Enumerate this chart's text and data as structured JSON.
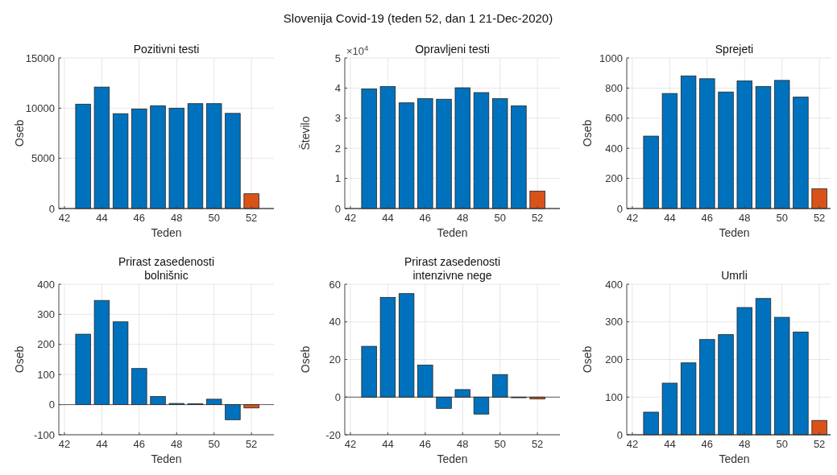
{
  "chart_data": [
    {
      "type": "bar",
      "title": "Pozitivni testi",
      "xlabel": "Teden",
      "ylabel": "Oseb",
      "annotations": [
        "Slovenija Covid-19 (teden 52, dan 1 21-Dec-2020)"
      ],
      "x": [
        43,
        44,
        45,
        46,
        47,
        48,
        49,
        50,
        51,
        52
      ],
      "values": [
        10400,
        12100,
        9450,
        9920,
        10240,
        10000,
        10450,
        10450,
        9480,
        1470
      ],
      "colors": [
        "#0072bd",
        "#0072bd",
        "#0072bd",
        "#0072bd",
        "#0072bd",
        "#0072bd",
        "#0072bd",
        "#0072bd",
        "#0072bd",
        "#d95319"
      ],
      "xlim": [
        41.7,
        53.2
      ],
      "xticks": [
        42,
        44,
        46,
        48,
        50,
        52
      ],
      "ylim": [
        0,
        15000
      ],
      "yticks": [
        0,
        5000,
        10000,
        15000
      ],
      "grid": true
    },
    {
      "type": "bar",
      "title": "Opravljeni testi",
      "xlabel": "Teden",
      "ylabel": "Število",
      "annotations": [
        "×10$^{4}$"
      ],
      "x": [
        43,
        44,
        45,
        46,
        47,
        48,
        49,
        50,
        51,
        52
      ],
      "values": [
        3.97,
        4.05,
        3.51,
        3.65,
        3.63,
        4.01,
        3.85,
        3.65,
        3.41,
        0.58
      ],
      "colors": [
        "#0072bd",
        "#0072bd",
        "#0072bd",
        "#0072bd",
        "#0072bd",
        "#0072bd",
        "#0072bd",
        "#0072bd",
        "#0072bd",
        "#d95319"
      ],
      "xlim": [
        41.7,
        53.2
      ],
      "xticks": [
        42,
        44,
        46,
        48,
        50,
        52
      ],
      "ylim": [
        0,
        5
      ],
      "yticks": [
        0,
        1,
        2,
        3,
        4,
        5
      ],
      "grid": true
    },
    {
      "type": "bar",
      "title": "Sprejeti",
      "xlabel": "Teden",
      "ylabel": "Oseb",
      "x": [
        43,
        44,
        45,
        46,
        47,
        48,
        49,
        50,
        51,
        52
      ],
      "values": [
        481,
        764,
        881,
        862,
        774,
        848,
        811,
        851,
        740,
        131
      ],
      "colors": [
        "#0072bd",
        "#0072bd",
        "#0072bd",
        "#0072bd",
        "#0072bd",
        "#0072bd",
        "#0072bd",
        "#0072bd",
        "#0072bd",
        "#d95319"
      ],
      "xlim": [
        41.7,
        53.2
      ],
      "xticks": [
        42,
        44,
        46,
        48,
        50,
        52
      ],
      "ylim": [
        0,
        1000
      ],
      "yticks": [
        0,
        200,
        400,
        600,
        800,
        1000
      ],
      "grid": true
    },
    {
      "type": "bar",
      "title": "Prirast zasedenosti\nbolnišnic",
      "xlabel": "Teden",
      "ylabel": "Oseb",
      "x": [
        43,
        44,
        45,
        46,
        47,
        48,
        49,
        50,
        51,
        52
      ],
      "values": [
        234,
        346,
        275,
        120,
        27,
        4,
        3,
        18,
        -50,
        -11
      ],
      "colors": [
        "#0072bd",
        "#0072bd",
        "#0072bd",
        "#0072bd",
        "#0072bd",
        "#0072bd",
        "#0072bd",
        "#0072bd",
        "#0072bd",
        "#d95319"
      ],
      "xlim": [
        41.7,
        53.2
      ],
      "xticks": [
        42,
        44,
        46,
        48,
        50,
        52
      ],
      "ylim": [
        -100,
        400
      ],
      "yticks": [
        -100,
        0,
        100,
        200,
        300,
        400
      ],
      "grid": true
    },
    {
      "type": "bar",
      "title": "Prirast zasedenosti\nintenzivne nege",
      "xlabel": "Teden",
      "ylabel": "Oseb",
      "x": [
        43,
        44,
        45,
        46,
        47,
        48,
        49,
        50,
        51,
        52
      ],
      "values": [
        27,
        53,
        55,
        17,
        -6,
        4,
        -9,
        12,
        0,
        -1
      ],
      "colors": [
        "#0072bd",
        "#0072bd",
        "#0072bd",
        "#0072bd",
        "#0072bd",
        "#0072bd",
        "#0072bd",
        "#0072bd",
        "#0072bd",
        "#d95319"
      ],
      "xlim": [
        41.7,
        53.2
      ],
      "xticks": [
        42,
        44,
        46,
        48,
        50,
        52
      ],
      "ylim": [
        -20,
        60
      ],
      "yticks": [
        -20,
        0,
        20,
        40,
        60
      ],
      "grid": true
    },
    {
      "type": "bar",
      "title": "Umrli",
      "xlabel": "Teden",
      "ylabel": "Oseb",
      "x": [
        43,
        44,
        45,
        46,
        47,
        48,
        49,
        50,
        51,
        52
      ],
      "values": [
        60,
        137,
        191,
        253,
        266,
        338,
        362,
        312,
        273,
        38
      ],
      "colors": [
        "#0072bd",
        "#0072bd",
        "#0072bd",
        "#0072bd",
        "#0072bd",
        "#0072bd",
        "#0072bd",
        "#0072bd",
        "#0072bd",
        "#d95319"
      ],
      "xlim": [
        41.7,
        53.2
      ],
      "xticks": [
        42,
        44,
        46,
        48,
        50,
        52
      ],
      "ylim": [
        0,
        400
      ],
      "yticks": [
        0,
        100,
        200,
        300,
        400
      ],
      "grid": true
    }
  ]
}
